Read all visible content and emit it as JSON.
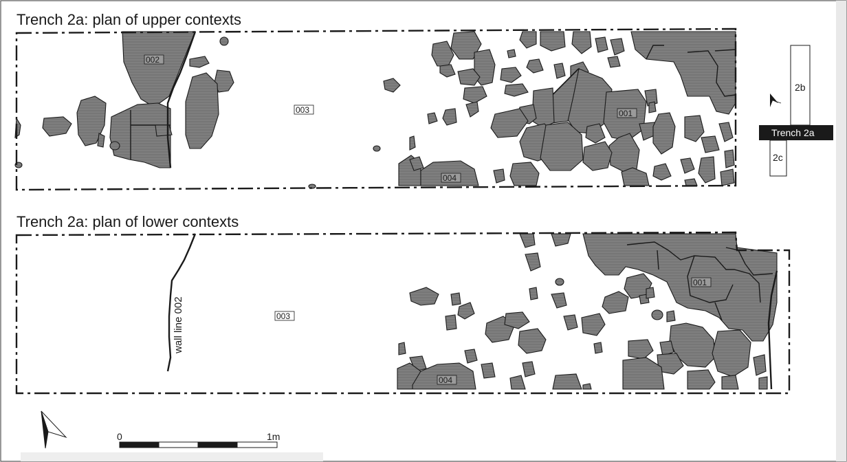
{
  "upper_plan": {
    "title": "Trench 2a: plan of upper contexts",
    "contexts": {
      "c001": "001",
      "c002": "002",
      "c003": "003",
      "c004": "004"
    }
  },
  "lower_plan": {
    "title": "Trench 2a: plan of lower contexts",
    "wall_label": "wall line 002",
    "contexts": {
      "c001": "001",
      "c003": "003",
      "c004": "004"
    }
  },
  "key_plan": {
    "trench_2b": "2b",
    "trench_2a": "Trench 2a",
    "trench_2c": "2c"
  },
  "scale_bar": {
    "start_label": "0",
    "end_label": "1m"
  },
  "colors": {
    "stone_fill": "#7a7a7a",
    "ink": "#1a1a1a",
    "highlight_trench": "#1a1a1a"
  }
}
